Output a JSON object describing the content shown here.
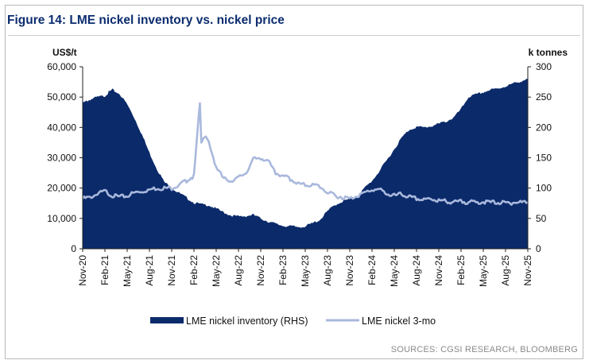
{
  "figure": {
    "title": "Figure 14: LME nickel inventory vs. nickel price",
    "source": "SOURCES: CGSI RESEARCH, BLOOMBERG"
  },
  "colors": {
    "inventory": "#0b2a6a",
    "price": "#a9b8dc",
    "title": "#0b2c6e",
    "axis": "#222222"
  },
  "chart_data": {
    "type": "area",
    "title": "Figure 14: LME nickel inventory vs. nickel price",
    "x_tick_labels": [
      "Nov-20",
      "Feb-21",
      "May-21",
      "Aug-21",
      "Nov-21",
      "Feb-22",
      "May-22",
      "Aug-22",
      "Nov-22",
      "Feb-23",
      "May-23",
      "Aug-23",
      "Nov-23",
      "Feb-24",
      "May-24",
      "Aug-24",
      "Nov-24",
      "Feb-25",
      "May-25",
      "Aug-25",
      "Nov-25"
    ],
    "y_left": {
      "label": "US$/t",
      "min": 0,
      "max": 60000,
      "ticks": [
        0,
        10000,
        20000,
        30000,
        40000,
        50000,
        60000
      ],
      "tick_labels": [
        "0",
        "10,000",
        "20,000",
        "30,000",
        "40,000",
        "50,000",
        "60,000"
      ]
    },
    "y_right": {
      "label": "k tonnes",
      "min": 0,
      "max": 300,
      "ticks": [
        0,
        50,
        100,
        150,
        200,
        250,
        300
      ],
      "tick_labels": [
        "0",
        "50",
        "100",
        "150",
        "200",
        "250",
        "300"
      ]
    },
    "series": [
      {
        "name": "LME nickel inventory (RHS)",
        "axis": "right",
        "kind": "area",
        "x": [
          0,
          0.5,
          1,
          2,
          3,
          3.5,
          4,
          5,
          6,
          7,
          8,
          9,
          10,
          11,
          12,
          13,
          14,
          15,
          16,
          17,
          18,
          19,
          20,
          21,
          22,
          23,
          24,
          25,
          26,
          27,
          28,
          29,
          30,
          31,
          32,
          33,
          34,
          35,
          36,
          37,
          38,
          39,
          40,
          41,
          42,
          43,
          44,
          45,
          46,
          47,
          48,
          49,
          50,
          51,
          52,
          53,
          54,
          55,
          56,
          57,
          58,
          59,
          60
        ],
        "values": [
          240,
          243,
          246,
          250,
          252,
          258,
          262,
          255,
          238,
          215,
          188,
          158,
          132,
          110,
          100,
          92,
          84,
          76,
          73,
          72,
          66,
          60,
          55,
          53,
          54,
          56,
          50,
          45,
          41,
          38,
          37,
          36,
          37,
          42,
          48,
          62,
          72,
          78,
          82,
          86,
          100,
          112,
          128,
          146,
          164,
          183,
          196,
          201,
          200,
          202,
          206,
          210,
          216,
          230,
          250,
          254,
          258,
          262,
          264,
          268,
          272,
          276,
          280
        ],
        "values_note": "x = months since Nov-20"
      },
      {
        "name": "LME nickel 3-mo",
        "axis": "left",
        "kind": "line",
        "x": [
          0,
          1,
          2,
          3,
          4,
          5,
          6,
          7,
          8,
          9,
          10,
          11,
          12,
          13,
          14,
          15,
          15.8,
          16,
          16.3,
          16.6,
          17,
          18,
          19,
          20,
          21,
          22,
          23,
          24,
          25,
          26,
          27,
          28,
          29,
          30,
          31,
          32,
          33,
          34,
          35,
          36,
          37,
          38,
          39,
          40,
          41,
          42,
          43,
          44,
          45,
          46,
          47,
          48,
          49,
          50,
          51,
          52,
          53,
          54,
          55,
          56,
          57,
          58,
          59,
          60
        ],
        "values": [
          16500,
          17000,
          18000,
          19000,
          17500,
          17000,
          17500,
          18500,
          19000,
          19500,
          20000,
          20000,
          20000,
          21000,
          22500,
          24000,
          48000,
          35000,
          36500,
          37000,
          35000,
          27000,
          23000,
          22500,
          23500,
          25000,
          29500,
          30000,
          29000,
          25000,
          24000,
          23000,
          21500,
          21000,
          21000,
          20500,
          18500,
          17500,
          17000,
          16500,
          17500,
          18500,
          19500,
          19500,
          18000,
          17500,
          18000,
          17000,
          16500,
          16000,
          16500,
          15800,
          15700,
          15300,
          15500,
          15400,
          15200,
          15500,
          15300,
          15200,
          15100,
          15200,
          15300,
          15300
        ],
        "values_note": "x = months since Nov-20"
      }
    ],
    "legend": [
      "LME nickel inventory (RHS)",
      "LME nickel 3-mo"
    ],
    "legend_position": "bottom"
  }
}
